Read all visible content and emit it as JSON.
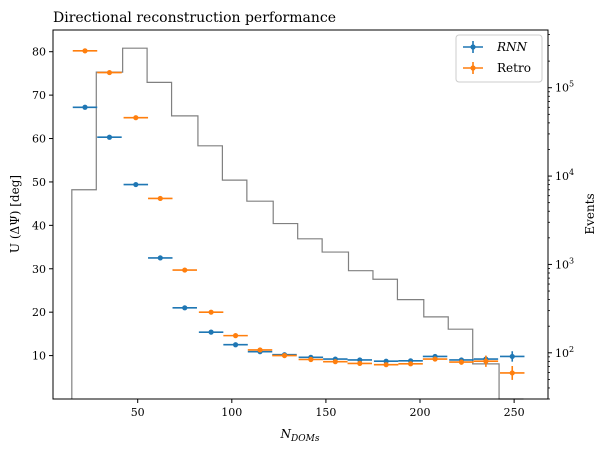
{
  "chart_data": {
    "type": "scatter",
    "title": "Directional reconstruction performance",
    "xlabel": "N_DOMs",
    "xlabel_main": "N",
    "xlabel_sub": "DOMs",
    "ylabel": "U (ΔΨ) [deg]",
    "ylabel_right": "Events",
    "xlim": [
      5,
      268
    ],
    "ylim": [
      0,
      85
    ],
    "y2lim": [
      30,
      450000
    ],
    "y2_scale": "log",
    "grid": false,
    "legend_position": "top-right",
    "x_ticks": [
      50,
      100,
      150,
      200,
      250
    ],
    "y_ticks": [
      10,
      20,
      30,
      40,
      50,
      60,
      70,
      80
    ],
    "y2_ticks": [
      {
        "value": 100,
        "base": "10",
        "exp": "2"
      },
      {
        "value": 1000,
        "base": "10",
        "exp": "3"
      },
      {
        "value": 10000,
        "base": "10",
        "exp": "4"
      },
      {
        "value": 100000,
        "base": "10",
        "exp": "5"
      }
    ],
    "series": [
      {
        "name": "RNN",
        "style": "italic",
        "color": "#1f77b4",
        "x": [
          22,
          35,
          49,
          62,
          75,
          89,
          102,
          115,
          128,
          142,
          155,
          168,
          182,
          195,
          208,
          222,
          235,
          249
        ],
        "y": [
          67.2,
          60.3,
          49.4,
          32.5,
          21.0,
          15.4,
          12.5,
          10.9,
          10.2,
          9.6,
          9.2,
          9.0,
          8.7,
          8.8,
          9.8,
          9.0,
          9.2,
          9.8
        ],
        "xerr": 6.5,
        "yerr": [
          0.3,
          0.3,
          0.3,
          0.3,
          0.3,
          0.3,
          0.3,
          0.3,
          0.3,
          0.3,
          0.3,
          0.3,
          0.3,
          0.3,
          0.3,
          0.4,
          0.6,
          1.2
        ]
      },
      {
        "name": "Retro",
        "style": "normal",
        "color": "#ff7f0e",
        "x": [
          22,
          35,
          49,
          62,
          75,
          89,
          102,
          115,
          128,
          142,
          155,
          168,
          182,
          195,
          208,
          222,
          235,
          249
        ],
        "y": [
          80.2,
          75.2,
          64.8,
          46.2,
          29.7,
          20.0,
          14.6,
          11.3,
          10.0,
          9.1,
          8.6,
          8.2,
          7.9,
          8.1,
          9.2,
          8.5,
          8.7,
          6.0
        ],
        "xerr": 6.5,
        "yerr": [
          0.3,
          0.3,
          0.3,
          0.3,
          0.3,
          0.3,
          0.3,
          0.3,
          0.3,
          0.3,
          0.3,
          0.3,
          0.3,
          0.3,
          0.4,
          0.6,
          1.3,
          1.6
        ]
      }
    ],
    "histogram": {
      "color": "#808080",
      "bin_edges": [
        15,
        28,
        42,
        55,
        68,
        82,
        95,
        108,
        122,
        135,
        148,
        162,
        175,
        188,
        202,
        215,
        228,
        242,
        255
      ],
      "counts": [
        7000,
        150000,
        280000,
        115000,
        48000,
        22000,
        9000,
        5200,
        2900,
        1950,
        1380,
        850,
        680,
        400,
        255,
        185,
        75,
        30
      ]
    }
  }
}
